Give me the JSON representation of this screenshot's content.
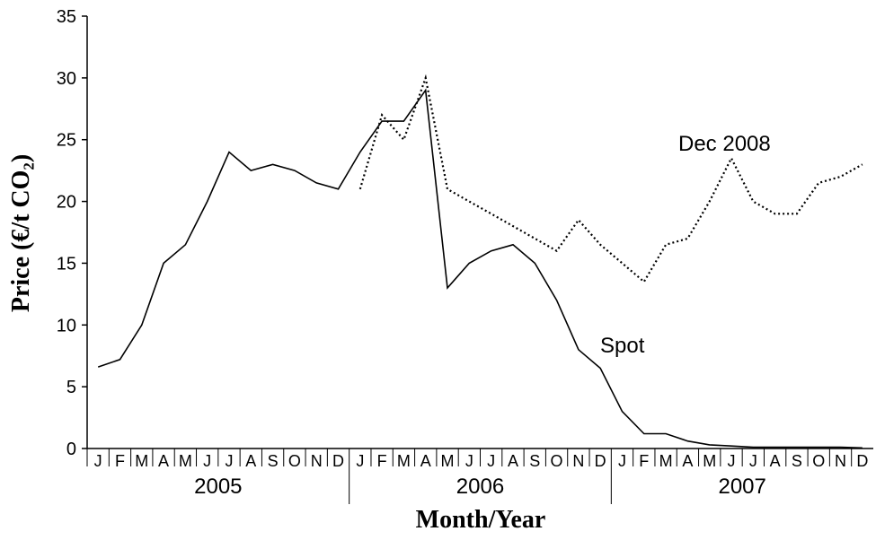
{
  "chart_data": {
    "type": "line",
    "y_label": "Price (€/t CO₂)",
    "x_label": "Month/Year",
    "categories": [
      "J",
      "F",
      "M",
      "A",
      "M",
      "J",
      "J",
      "A",
      "S",
      "O",
      "N",
      "D",
      "J",
      "F",
      "M",
      "A",
      "M",
      "J",
      "J",
      "A",
      "S",
      "O",
      "N",
      "D",
      "J",
      "F",
      "M",
      "A",
      "M",
      "J",
      "J",
      "A",
      "S",
      "O",
      "N",
      "D"
    ],
    "years": [
      "2005",
      "2006",
      "2007"
    ],
    "ylim": [
      0,
      35
    ],
    "yticks": [
      0,
      5,
      10,
      15,
      20,
      25,
      30,
      35
    ],
    "series": [
      {
        "name": "Spot",
        "color": "#000000",
        "style": "solid",
        "values": [
          6.6,
          7.2,
          10,
          15,
          16.5,
          20,
          24,
          22.5,
          23,
          22.5,
          21.5,
          21,
          24,
          26.5,
          26.5,
          29,
          13,
          15,
          16,
          16.5,
          15,
          12,
          8,
          6.5,
          3,
          1.2,
          1.2,
          0.6,
          0.3,
          0.2,
          0.1,
          0.1,
          0.1,
          0.1,
          0.1,
          0.05
        ]
      },
      {
        "name": "Dec 2008",
        "color": "#000000",
        "style": "dotted",
        "values": [
          null,
          null,
          null,
          null,
          null,
          null,
          null,
          null,
          null,
          null,
          null,
          null,
          21,
          27,
          25,
          30,
          21,
          20,
          19,
          18,
          17,
          16,
          18.5,
          16.5,
          15,
          13.5,
          16.5,
          17,
          20,
          23.5,
          20,
          19,
          19,
          21.5,
          22,
          23
        ]
      }
    ]
  }
}
